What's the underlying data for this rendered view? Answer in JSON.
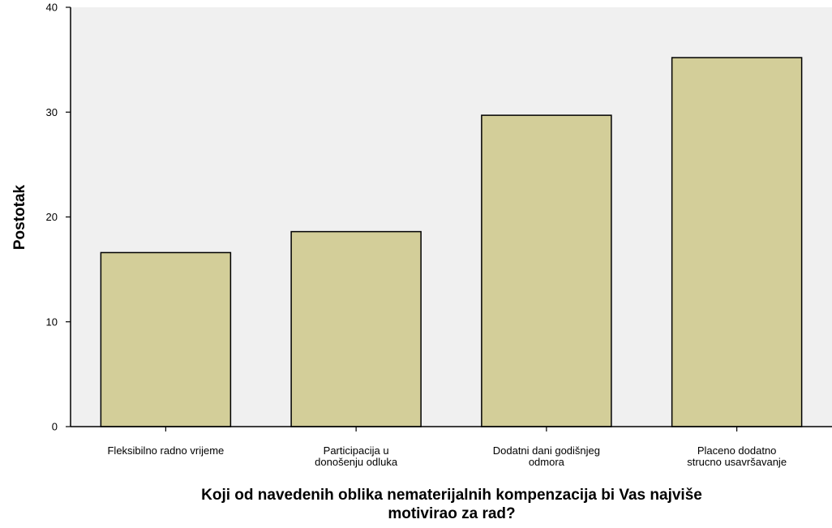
{
  "chart_data": {
    "type": "bar",
    "categories": [
      [
        "Fleksibilno radno vrijeme"
      ],
      [
        "Participacija u",
        "donošenju odluka"
      ],
      [
        "Dodatni dani godišnjeg",
        "odmora"
      ],
      [
        "Placeno dodatno",
        "strucno usavršavanje"
      ]
    ],
    "values": [
      16.6,
      18.6,
      29.7,
      35.2
    ],
    "ylabel": "Postotak",
    "xlabel": [
      "Koji od navedenih oblika nematerijalnih kompenzacija bi Vas najviše",
      "motivirao za rad?"
    ],
    "ylim": [
      0,
      40
    ],
    "yticks": [
      0,
      10,
      20,
      30,
      40
    ],
    "grid": false,
    "colors": {
      "plot_background": "#f0f0f0",
      "bar_fill": "#d3ce99",
      "bar_stroke": "#000000",
      "axis": "#000000"
    }
  }
}
